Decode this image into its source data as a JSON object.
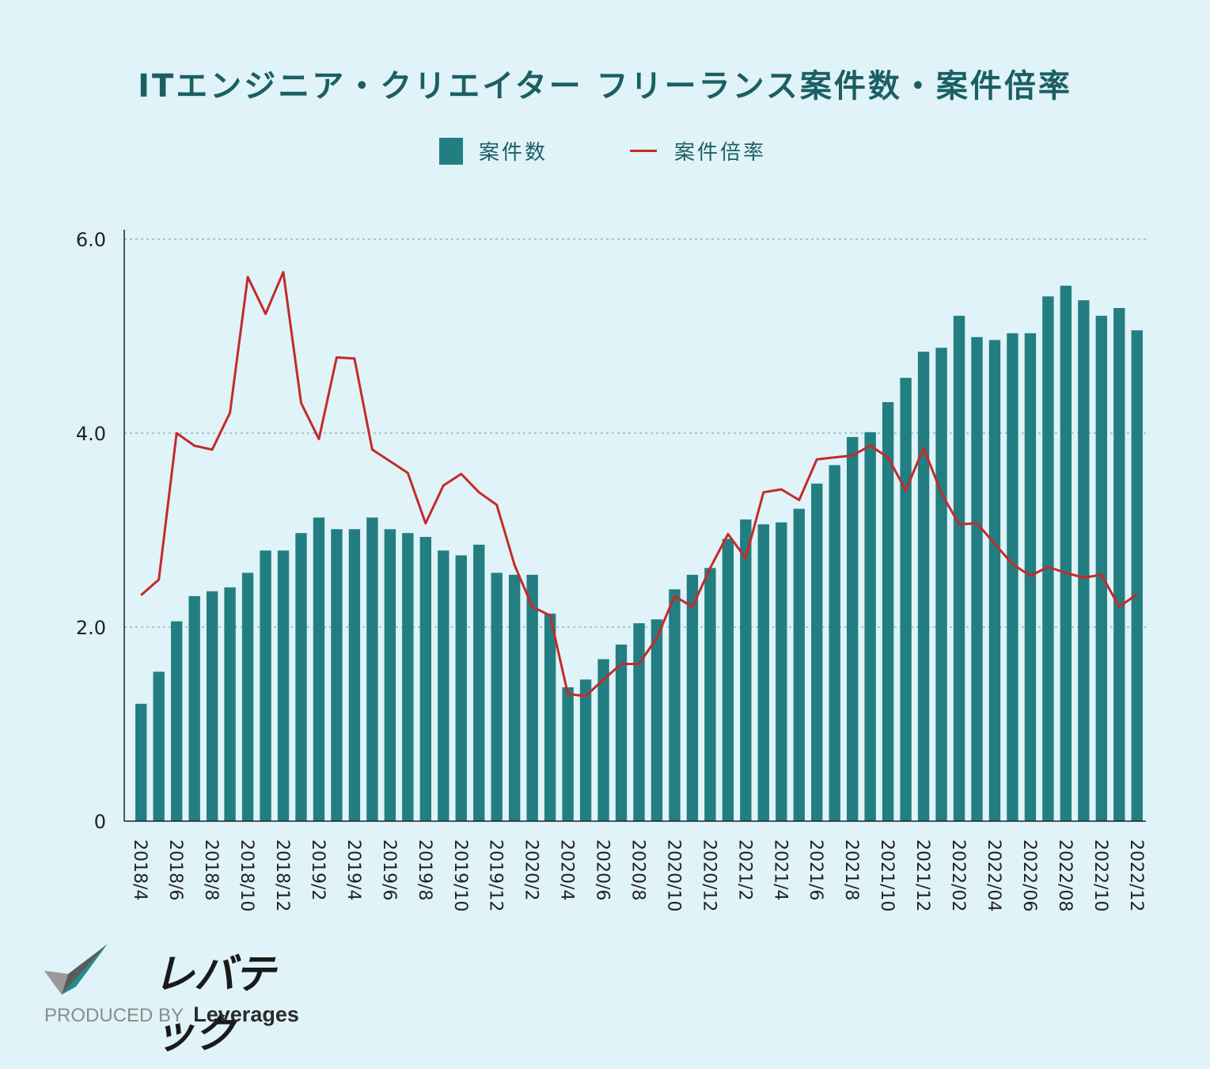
{
  "chart_data": {
    "type": "bar",
    "title": "ITエンジニア・クリエイター フリーランス案件数・案件倍率",
    "ylim": [
      0,
      6
    ],
    "yticks": [
      "0",
      "2.0",
      "4.0",
      "6.0"
    ],
    "ytick_values": [
      0,
      2,
      4,
      6
    ],
    "grid": true,
    "legend_position": "top",
    "series": [
      {
        "name": "案件数",
        "type": "bar",
        "color": "#237e82",
        "values": [
          1.21,
          1.54,
          2.06,
          2.32,
          2.37,
          2.41,
          2.56,
          2.79,
          2.79,
          2.97,
          3.13,
          3.01,
          3.01,
          3.13,
          3.01,
          2.97,
          2.93,
          2.79,
          2.74,
          2.85,
          2.56,
          2.54,
          2.54,
          2.14,
          1.38,
          1.46,
          1.67,
          1.82,
          2.04,
          2.08,
          2.39,
          2.54,
          2.61,
          2.91,
          3.11,
          3.06,
          3.08,
          3.22,
          3.48,
          3.67,
          3.96,
          4.01,
          4.32,
          4.57,
          4.84,
          4.88,
          5.21,
          4.99,
          4.96,
          5.03,
          5.03,
          5.41,
          5.52,
          5.37,
          5.21,
          5.29,
          5.06
        ]
      },
      {
        "name": "案件倍率",
        "type": "line",
        "color": "#c52a2a",
        "values": [
          2.33,
          2.49,
          4.0,
          3.87,
          3.83,
          4.21,
          5.61,
          5.23,
          5.66,
          4.31,
          3.94,
          4.78,
          4.77,
          3.83,
          3.71,
          3.59,
          3.07,
          3.46,
          3.58,
          3.39,
          3.26,
          2.64,
          2.21,
          2.12,
          1.31,
          1.29,
          1.46,
          1.62,
          1.62,
          1.89,
          2.32,
          2.21,
          2.61,
          2.96,
          2.71,
          3.39,
          3.42,
          3.31,
          3.73,
          3.75,
          3.77,
          3.87,
          3.75,
          3.41,
          3.85,
          3.38,
          3.06,
          3.07,
          2.86,
          2.65,
          2.53,
          2.62,
          2.56,
          2.51,
          2.54,
          2.21,
          2.34
        ]
      }
    ],
    "categories": [
      "2018/4",
      "",
      "2018/6",
      "",
      "2018/8",
      "",
      "2018/10",
      "",
      "2018/12",
      "",
      "2019/2",
      "",
      "2019/4",
      "",
      "2019/6",
      "",
      "2019/8",
      "",
      "2019/10",
      "",
      "2019/12",
      "",
      "2020/2",
      "",
      "2020/4",
      "",
      "2020/6",
      "",
      "2020/8",
      "",
      "2020/10",
      "",
      "2020/12",
      "",
      "2021/2",
      "",
      "2021/4",
      "",
      "2021/6",
      "",
      "2021/8",
      "",
      "2021/10",
      "",
      "2021/12",
      "",
      "2022/02",
      "",
      "2022/04",
      "",
      "2022/06",
      "",
      "2022/08",
      "",
      "2022/10",
      "",
      "2022/12"
    ]
  },
  "logo": {
    "name": "レバテック",
    "produced_by": "PRODUCED BY",
    "brand": "Leverages"
  }
}
